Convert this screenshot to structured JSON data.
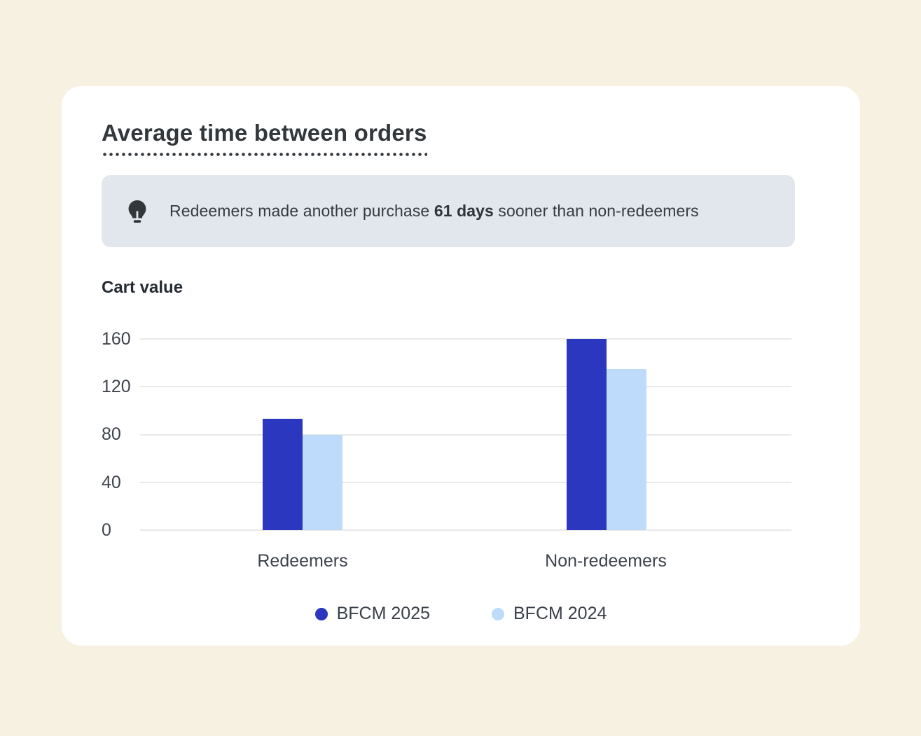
{
  "page": {
    "background": "#F7F1E2",
    "card_background": "#FFFFFF"
  },
  "card": {
    "title": "Average time between orders",
    "insight": {
      "icon": "lightbulb-icon",
      "background": "#E2E7ED",
      "prefix": "Redeemers made another purchase ",
      "highlight": "61 days",
      "suffix": " sooner than non-redeemers"
    },
    "chart_label": "Cart value"
  },
  "chart_data": {
    "type": "bar",
    "title": "Cart value",
    "categories": [
      "Redeemers",
      "Non-redeemers"
    ],
    "series": [
      {
        "name": "BFCM 2025",
        "color": "#2A37BE",
        "values": [
          93,
          160
        ]
      },
      {
        "name": "BFCM 2024",
        "color": "#BEDBFB",
        "values": [
          80,
          135
        ]
      }
    ],
    "yticks": [
      160,
      120,
      80,
      40,
      0
    ],
    "ylim": [
      0,
      160
    ],
    "xlabel": "",
    "ylabel": "",
    "grid": true,
    "gridline_color": "#E9E9E9",
    "legend_position": "bottom"
  }
}
